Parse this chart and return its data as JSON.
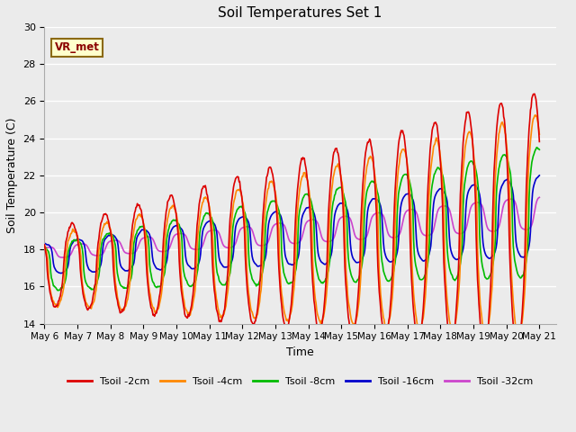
{
  "title": "Soil Temperatures Set 1",
  "xlabel": "Time",
  "ylabel": "Soil Temperature (C)",
  "ylim": [
    14,
    30
  ],
  "xtick_labels": [
    "May 6",
    "May 7",
    "May 8",
    "May 9",
    "May 10",
    "May 11",
    "May 12",
    "May 13",
    "May 14",
    "May 15",
    "May 16",
    "May 17",
    "May 18",
    "May 19",
    "May 20",
    "May 21"
  ],
  "colors": {
    "Tsoil -2cm": "#dd0000",
    "Tsoil -4cm": "#ff8800",
    "Tsoil -8cm": "#00bb00",
    "Tsoil -16cm": "#0000cc",
    "Tsoil -32cm": "#cc44cc"
  },
  "legend_labels": [
    "Tsoil -2cm",
    "Tsoil -4cm",
    "Tsoil -8cm",
    "Tsoil -16cm",
    "Tsoil -32cm"
  ],
  "annotation_text": "VR_met",
  "plot_bg": "#ebebeb",
  "grid_color": "#ffffff",
  "line_width": 1.2,
  "figsize": [
    6.4,
    4.8
  ],
  "dpi": 100
}
